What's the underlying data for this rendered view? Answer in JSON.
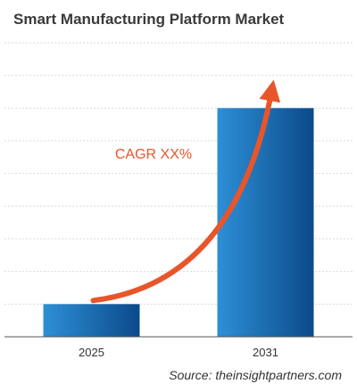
{
  "title": "Smart Manufacturing Platform Market",
  "source": "Source: theinsightpartners.com",
  "chart_data": {
    "type": "bar",
    "categories": [
      "2025",
      "2031"
    ],
    "values": [
      1,
      7
    ],
    "ylim": [
      0,
      9
    ],
    "grid": true,
    "title": "Smart Manufacturing Platform Market",
    "xlabel": "",
    "ylabel": "",
    "annotation": "CAGR XX%",
    "colors": {
      "bar_light": "#2e8fd6",
      "bar_dark": "#0b4a8a",
      "arrow": "#e8552b",
      "grid": "#d9d9d9",
      "axis": "#555555",
      "annotation": "#e8552b"
    }
  }
}
